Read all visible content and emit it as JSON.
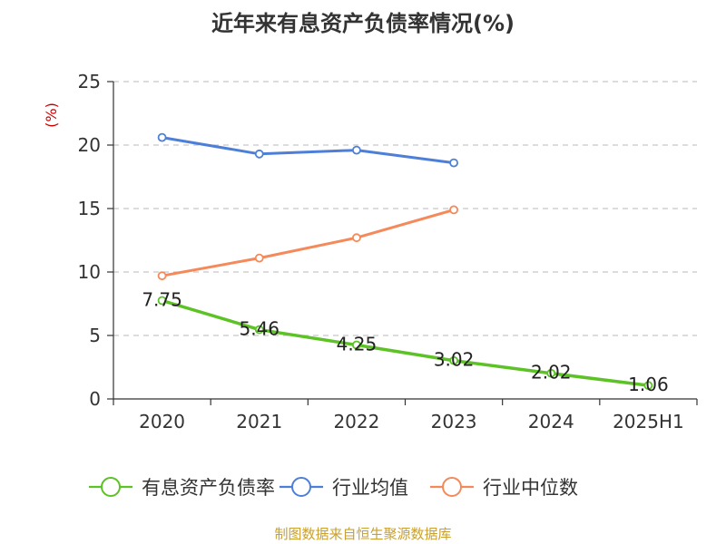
{
  "chart_data": {
    "type": "line",
    "title": "近年来有息资产负债率情况(%)",
    "ylabel": "(%)",
    "xlabel": "",
    "categories": [
      "2020",
      "2021",
      "2022",
      "2023",
      "2024",
      "2025H1"
    ],
    "ylim": [
      0,
      25
    ],
    "yticks": [
      0,
      5,
      10,
      15,
      20,
      25
    ],
    "grid": "horizontal-dashed",
    "legend_position": "bottom",
    "series": [
      {
        "name": "有息资产负债率",
        "color": "#5cc226",
        "values": [
          7.75,
          5.46,
          4.25,
          3.02,
          2.02,
          1.06
        ],
        "show_labels": true
      },
      {
        "name": "行业均值",
        "color": "#4e7fd8",
        "values": [
          20.6,
          19.3,
          19.6,
          18.6,
          null,
          null
        ],
        "show_labels": false
      },
      {
        "name": "行业中位数",
        "color": "#f5895a",
        "values": [
          9.7,
          11.1,
          12.7,
          14.9,
          null,
          null
        ],
        "show_labels": false
      }
    ]
  },
  "source_text": "制图数据来自恒生聚源数据库"
}
